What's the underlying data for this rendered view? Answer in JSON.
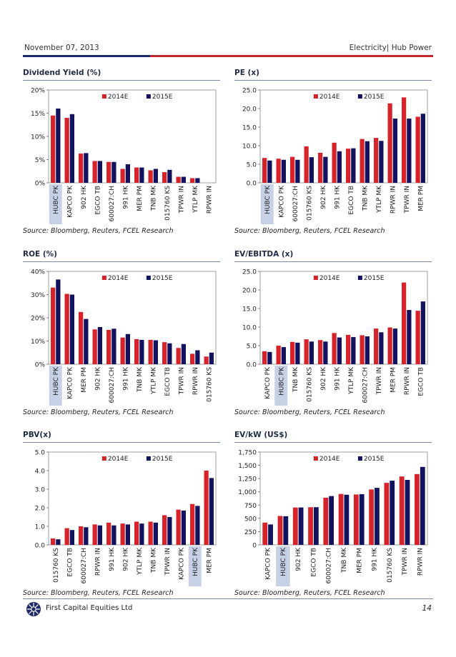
{
  "header": {
    "date": "November 07, 2013",
    "section": "Electricity| Hub Power"
  },
  "footer": {
    "company": "First Capital Equities Ltd",
    "page": "14"
  },
  "colors": {
    "series_2014": "#d6232a",
    "series_2015": "#12125e",
    "highlight": "#c7d1e6"
  },
  "chart_data": [
    {
      "id": "dy",
      "type": "bar",
      "title": "Dividend Yield (%)",
      "source": "Source: Bloomberg, Reuters, FCEL Research",
      "categories": [
        "HUBC PK",
        "KAPCO PK",
        "902 HK",
        "EGCO TB",
        "600027:CH",
        "991 HK",
        "MER PM",
        "TNB MK",
        "015760 KS",
        "TPWR IN",
        "YTLP MK",
        "RPWR IN"
      ],
      "highlight": "HUBC PK",
      "series": [
        {
          "name": "2014E",
          "values": [
            14.5,
            14.0,
            6.3,
            4.7,
            4.5,
            3.0,
            3.3,
            2.7,
            2.3,
            1.3,
            1.0,
            0
          ]
        },
        {
          "name": "2015E",
          "values": [
            16.0,
            14.8,
            6.4,
            4.7,
            4.5,
            4.0,
            3.3,
            3.0,
            2.8,
            1.3,
            1.0,
            0
          ]
        }
      ],
      "ylim": [
        0,
        20
      ],
      "yticks": [
        "0%",
        "5%",
        "10%",
        "15%",
        "20%"
      ],
      "legend": "top"
    },
    {
      "id": "pe",
      "type": "bar",
      "title": "PE (x)",
      "source": "Source: Bloomberg, Reuters, FCEL Research",
      "categories": [
        "HUBC PK",
        "KAPCO PK",
        "600027:CH",
        "015760 KS",
        "902 HK",
        "991 HK",
        "EGCO TB",
        "TNB MK",
        "YTLP MK",
        "RPWR IN",
        "TPWR IN",
        "MER PM"
      ],
      "highlight": "HUBC PK",
      "series": [
        {
          "name": "2014E",
          "values": [
            6.7,
            6.5,
            7.0,
            9.8,
            8.1,
            10.8,
            9.2,
            11.8,
            12.1,
            21.4,
            23.0,
            17.8
          ]
        },
        {
          "name": "2015E",
          "values": [
            6.0,
            6.2,
            6.2,
            6.9,
            7.0,
            8.5,
            9.3,
            11.2,
            11.3,
            17.3,
            17.3,
            18.6
          ]
        }
      ],
      "ylim": [
        0,
        25
      ],
      "yticks": [
        "0.0",
        "5.0",
        "10.0",
        "15.0",
        "20.0",
        "25.0"
      ],
      "legend": "top"
    },
    {
      "id": "roe",
      "type": "bar",
      "title": "ROE (%)",
      "source": "Source: Bloomberg, Reuters, FCEL Research",
      "categories": [
        "HUBC PK",
        "KAPCO PK",
        "MER PM",
        "902 HK",
        "600027:CH",
        "991 HK",
        "TNB MK",
        "YTLP MK",
        "EGCO TB",
        "TPWR IN",
        "RPWR IN",
        "015760 KS"
      ],
      "highlight": "HUBC PK",
      "series": [
        {
          "name": "2014E",
          "values": [
            33.0,
            30.3,
            22.5,
            15.0,
            14.8,
            11.5,
            10.8,
            10.5,
            9.5,
            7.0,
            4.5,
            3.3
          ]
        },
        {
          "name": "2015E",
          "values": [
            36.5,
            30.0,
            19.5,
            16.0,
            15.3,
            13.0,
            10.5,
            10.3,
            9.0,
            8.7,
            6.0,
            5.0
          ]
        }
      ],
      "ylim": [
        0,
        40
      ],
      "yticks": [
        "0%",
        "10%",
        "20%",
        "30%",
        "40%"
      ],
      "legend": "top"
    },
    {
      "id": "evebitda",
      "type": "bar",
      "title": "EV/EBITDA (x)",
      "source": "Source: Bloomberg, Reuters, FCEL Research",
      "categories": [
        "KAPCO PK",
        "HUBC PK",
        "TNB MK",
        "015760 KS",
        "902 HK",
        "991 HK",
        "YTLP MK",
        "600027:CH",
        "TPWR IN",
        "MER PM",
        "RPWR IN",
        "EGCO TB"
      ],
      "highlight": "HUBC PK",
      "series": [
        {
          "name": "2014E",
          "values": [
            3.5,
            5.0,
            6.0,
            6.7,
            6.5,
            8.4,
            7.9,
            7.8,
            9.6,
            9.9,
            22.0,
            14.4
          ]
        },
        {
          "name": "2015E",
          "values": [
            3.3,
            4.6,
            5.8,
            6.1,
            6.1,
            7.2,
            7.3,
            7.5,
            8.6,
            9.6,
            14.6,
            16.9
          ]
        }
      ],
      "ylim": [
        0,
        25
      ],
      "yticks": [
        "0.0",
        "5.0",
        "10.0",
        "15.0",
        "20.0",
        "25.0"
      ],
      "legend": "top"
    },
    {
      "id": "pbv",
      "type": "bar",
      "title": "PBV(x)",
      "source": "Source: Bloomberg, Reuters, FCEL Research",
      "categories": [
        "015760 KS",
        "EGCO TB",
        "600027:CH",
        "RPWR IN",
        "991 HK",
        "902 HK",
        "YTLP MK",
        "TNB MK",
        "TPWR IN",
        "KAPCO PK",
        "HUBC PK",
        "MER PM"
      ],
      "highlight": "HUBC PK",
      "series": [
        {
          "name": "2014E",
          "values": [
            0.35,
            0.9,
            1.0,
            1.1,
            1.2,
            1.15,
            1.25,
            1.25,
            1.6,
            1.9,
            2.2,
            4.0
          ]
        },
        {
          "name": "2015E",
          "values": [
            0.3,
            0.8,
            0.95,
            1.05,
            1.05,
            1.1,
            1.15,
            1.2,
            1.5,
            1.85,
            2.1,
            3.6
          ]
        }
      ],
      "ylim": [
        0,
        5
      ],
      "yticks": [
        "0.0",
        "1.0",
        "2.0",
        "3.0",
        "4.0",
        "5.0"
      ],
      "legend": "top"
    },
    {
      "id": "evkw",
      "type": "bar",
      "title": "EV/kW (US$)",
      "source": "Source: Bloomberg, Reuters, FCEL Research",
      "categories": [
        "KAPCO PK",
        "HUBC PK",
        "902 HK",
        "EGCO TB",
        "600027:CH",
        "TNB MK",
        "MER PM",
        "991 HK",
        "015760 KS",
        "TPWR IN",
        "RPWR IN"
      ],
      "highlight": "HUBC PK",
      "series": [
        {
          "name": "2014E",
          "values": [
            420,
            545,
            705,
            710,
            890,
            960,
            950,
            1045,
            1170,
            1290,
            1335
          ]
        },
        {
          "name": "2015E",
          "values": [
            385,
            540,
            705,
            710,
            920,
            945,
            955,
            1075,
            1210,
            1225,
            1470
          ]
        }
      ],
      "ylim": [
        0,
        1750
      ],
      "yticks": [
        "0",
        "250",
        "500",
        "750",
        "1,000",
        "1,250",
        "1,500",
        "1,750"
      ],
      "legend": "top"
    }
  ]
}
